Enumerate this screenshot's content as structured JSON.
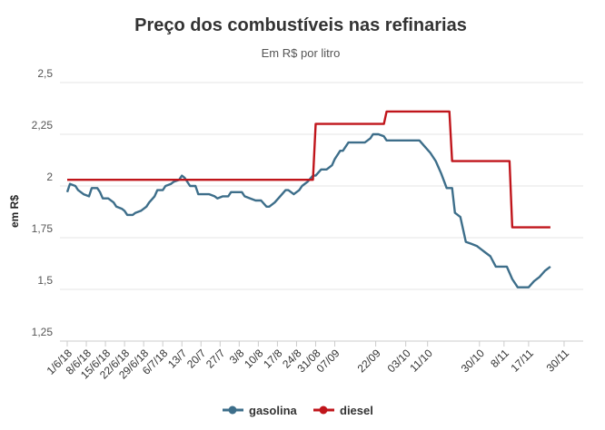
{
  "chart_data": {
    "type": "line",
    "title": "Preço dos combustíveis nas refinarias",
    "subtitle": "Em R$ por litro",
    "xlabel": "",
    "ylabel": "em R$",
    "ylim": [
      1.25,
      2.5
    ],
    "yticks": [
      1.25,
      1.5,
      1.75,
      2,
      2.25,
      2.5
    ],
    "ytick_labels": [
      "1,25",
      "1,5",
      "1,75",
      "2",
      "2,25",
      "2,5"
    ],
    "x_start": "2018-06-01",
    "x_end": "2018-12-07",
    "xtick_dates": [
      "2018-06-01",
      "2018-06-08",
      "2018-06-15",
      "2018-06-22",
      "2018-06-29",
      "2018-07-06",
      "2018-07-13",
      "2018-07-20",
      "2018-07-27",
      "2018-08-03",
      "2018-08-10",
      "2018-08-17",
      "2018-08-24",
      "2018-08-31",
      "2018-09-07",
      "2018-09-22",
      "2018-10-03",
      "2018-10-11",
      "2018-10-30",
      "2018-11-08",
      "2018-11-17",
      "2018-11-30"
    ],
    "xtick_labels": [
      "1/6/18",
      "8/6/18",
      "15/6/18",
      "22/6/18",
      "29/6/18",
      "6/7/18",
      "13/7",
      "20/7",
      "27/7",
      "3/8",
      "10/8",
      "17/8",
      "24/8",
      "31/08",
      "07/09",
      "22/09",
      "03/10",
      "11/10",
      "30/10",
      "8/11",
      "17/11",
      "30/11"
    ],
    "grid": true,
    "legend_position": "bottom",
    "series": [
      {
        "name": "gasolina",
        "color": "#3d6e8a",
        "points": [
          [
            "2018-06-01",
            1.97
          ],
          [
            "2018-06-02",
            2.01
          ],
          [
            "2018-06-04",
            2.0
          ],
          [
            "2018-06-05",
            1.98
          ],
          [
            "2018-06-07",
            1.96
          ],
          [
            "2018-06-09",
            1.95
          ],
          [
            "2018-06-10",
            1.99
          ],
          [
            "2018-06-12",
            1.99
          ],
          [
            "2018-06-13",
            1.97
          ],
          [
            "2018-06-14",
            1.94
          ],
          [
            "2018-06-16",
            1.94
          ],
          [
            "2018-06-18",
            1.92
          ],
          [
            "2018-06-19",
            1.9
          ],
          [
            "2018-06-21",
            1.89
          ],
          [
            "2018-06-22",
            1.88
          ],
          [
            "2018-06-23",
            1.86
          ],
          [
            "2018-06-25",
            1.86
          ],
          [
            "2018-06-26",
            1.87
          ],
          [
            "2018-06-28",
            1.88
          ],
          [
            "2018-06-30",
            1.9
          ],
          [
            "2018-07-01",
            1.92
          ],
          [
            "2018-07-03",
            1.95
          ],
          [
            "2018-07-04",
            1.98
          ],
          [
            "2018-07-06",
            1.98
          ],
          [
            "2018-07-07",
            2.0
          ],
          [
            "2018-07-09",
            2.01
          ],
          [
            "2018-07-10",
            2.02
          ],
          [
            "2018-07-12",
            2.03
          ],
          [
            "2018-07-13",
            2.05
          ],
          [
            "2018-07-14",
            2.04
          ],
          [
            "2018-07-16",
            2.0
          ],
          [
            "2018-07-18",
            2.0
          ],
          [
            "2018-07-19",
            1.96
          ],
          [
            "2018-07-21",
            1.96
          ],
          [
            "2018-07-23",
            1.96
          ],
          [
            "2018-07-25",
            1.95
          ],
          [
            "2018-07-26",
            1.94
          ],
          [
            "2018-07-28",
            1.95
          ],
          [
            "2018-07-30",
            1.95
          ],
          [
            "2018-07-31",
            1.97
          ],
          [
            "2018-08-02",
            1.97
          ],
          [
            "2018-08-04",
            1.97
          ],
          [
            "2018-08-05",
            1.95
          ],
          [
            "2018-08-07",
            1.94
          ],
          [
            "2018-08-09",
            1.93
          ],
          [
            "2018-08-11",
            1.93
          ],
          [
            "2018-08-13",
            1.9
          ],
          [
            "2018-08-14",
            1.9
          ],
          [
            "2018-08-16",
            1.92
          ],
          [
            "2018-08-18",
            1.95
          ],
          [
            "2018-08-20",
            1.98
          ],
          [
            "2018-08-21",
            1.98
          ],
          [
            "2018-08-23",
            1.96
          ],
          [
            "2018-08-25",
            1.98
          ],
          [
            "2018-08-26",
            2.0
          ],
          [
            "2018-08-28",
            2.02
          ],
          [
            "2018-08-30",
            2.05
          ],
          [
            "2018-08-31",
            2.05
          ],
          [
            "2018-09-02",
            2.08
          ],
          [
            "2018-09-04",
            2.08
          ],
          [
            "2018-09-06",
            2.1
          ],
          [
            "2018-09-07",
            2.13
          ],
          [
            "2018-09-09",
            2.17
          ],
          [
            "2018-09-10",
            2.17
          ],
          [
            "2018-09-12",
            2.21
          ],
          [
            "2018-09-14",
            2.21
          ],
          [
            "2018-09-16",
            2.21
          ],
          [
            "2018-09-18",
            2.21
          ],
          [
            "2018-09-20",
            2.23
          ],
          [
            "2018-09-21",
            2.25
          ],
          [
            "2018-09-23",
            2.25
          ],
          [
            "2018-09-25",
            2.24
          ],
          [
            "2018-09-26",
            2.22
          ],
          [
            "2018-09-28",
            2.22
          ],
          [
            "2018-09-30",
            2.22
          ],
          [
            "2018-10-02",
            2.22
          ],
          [
            "2018-10-04",
            2.22
          ],
          [
            "2018-10-06",
            2.22
          ],
          [
            "2018-10-08",
            2.22
          ],
          [
            "2018-10-10",
            2.19
          ],
          [
            "2018-10-12",
            2.16
          ],
          [
            "2018-10-14",
            2.12
          ],
          [
            "2018-10-16",
            2.06
          ],
          [
            "2018-10-18",
            1.99
          ],
          [
            "2018-10-20",
            1.99
          ],
          [
            "2018-10-21",
            1.87
          ],
          [
            "2018-10-23",
            1.85
          ],
          [
            "2018-10-25",
            1.73
          ],
          [
            "2018-10-27",
            1.72
          ],
          [
            "2018-10-29",
            1.71
          ],
          [
            "2018-10-31",
            1.69
          ],
          [
            "2018-11-01",
            1.68
          ],
          [
            "2018-11-03",
            1.66
          ],
          [
            "2018-11-05",
            1.61
          ],
          [
            "2018-11-07",
            1.61
          ],
          [
            "2018-11-09",
            1.61
          ],
          [
            "2018-11-11",
            1.55
          ],
          [
            "2018-11-13",
            1.51
          ],
          [
            "2018-11-15",
            1.51
          ],
          [
            "2018-11-17",
            1.51
          ],
          [
            "2018-11-19",
            1.54
          ],
          [
            "2018-11-21",
            1.56
          ],
          [
            "2018-11-23",
            1.59
          ],
          [
            "2018-11-25",
            1.61
          ]
        ]
      },
      {
        "name": "diesel",
        "color": "#c0151b",
        "points": [
          [
            "2018-06-01",
            2.03
          ],
          [
            "2018-08-30",
            2.03
          ],
          [
            "2018-08-31",
            2.3
          ],
          [
            "2018-09-25",
            2.3
          ],
          [
            "2018-09-26",
            2.36
          ],
          [
            "2018-10-19",
            2.36
          ],
          [
            "2018-10-20",
            2.12
          ],
          [
            "2018-11-10",
            2.12
          ],
          [
            "2018-11-11",
            1.8
          ],
          [
            "2018-11-25",
            1.8
          ]
        ]
      }
    ]
  }
}
